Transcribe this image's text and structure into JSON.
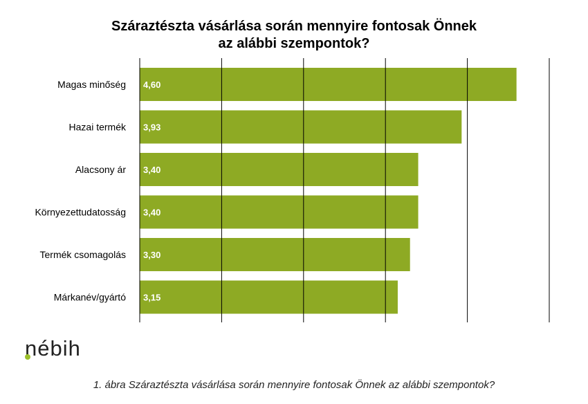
{
  "chart_data": {
    "type": "bar",
    "orientation": "horizontal",
    "title_lines": [
      "Száraztészta vásárlása során mennyire fontosak Önnek",
      "az alábbi szempontok?"
    ],
    "categories": [
      "Magas minőség",
      "Hazai termék",
      "Alacsony ár",
      "Környezettudatosság",
      "Termék csomagolás",
      "Márkanév/gyártó"
    ],
    "values": [
      4.6,
      3.93,
      3.4,
      3.4,
      3.3,
      3.15
    ],
    "data_labels": [
      "4,60",
      "3,93",
      "3,40",
      "3,40",
      "3,30",
      "3,15"
    ],
    "xlim": [
      0,
      5
    ],
    "grid": true,
    "legend": "none",
    "colors": {
      "bar": "#8eaa24",
      "gridline": "#000000",
      "label_text": "#ffffff"
    }
  },
  "logo": {
    "text": "nébih",
    "accent_color": "#9cbf2b"
  },
  "caption": "1. ábra Száraztészta vásárlása során mennyire fontosak Önnek az alábbi szempontok?"
}
